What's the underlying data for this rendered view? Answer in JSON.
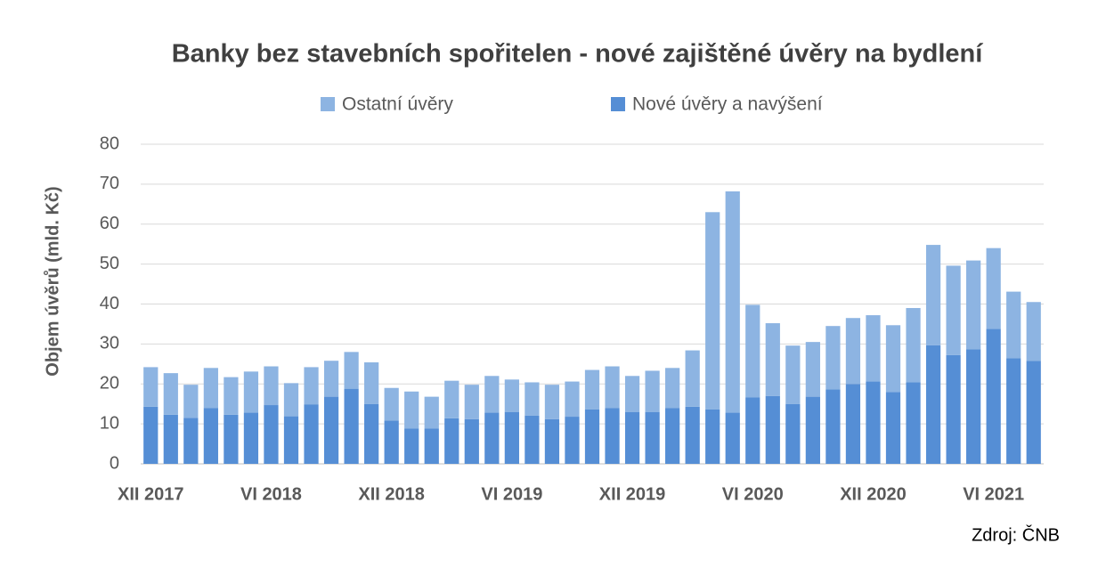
{
  "chart_data": {
    "type": "stacked_bar",
    "title": "Banky bez stavebních spořitelen - nové zajištěné úvěry na bydlení",
    "y_label": "Objem úvěrů (mld. Kč)",
    "source": "Zdroj: ČNB",
    "categories": [
      "XII 2017",
      null,
      null,
      null,
      null,
      null,
      "VI 2018",
      null,
      null,
      null,
      null,
      null,
      "XII 2018",
      null,
      null,
      null,
      null,
      null,
      "VI 2019",
      null,
      null,
      null,
      null,
      null,
      "XII 2019",
      null,
      null,
      null,
      null,
      null,
      "VI 2020",
      null,
      null,
      null,
      null,
      null,
      "XII 2020",
      null,
      null,
      null,
      null,
      null,
      "VI 2021",
      null,
      null
    ],
    "series": [
      {
        "name": "Nové úvěry a navýšení",
        "color": "#558ed5",
        "values": [
          14.3,
          12.3,
          11.5,
          14.0,
          12.3,
          12.8,
          14.7,
          11.9,
          14.9,
          16.8,
          18.8,
          15.0,
          10.8,
          8.8,
          8.8,
          11.4,
          11.2,
          12.8,
          13.0,
          12.1,
          11.2,
          11.8,
          13.6,
          14.0,
          13.0,
          13.0,
          14.0,
          14.3,
          13.6,
          12.8,
          16.6,
          17.0,
          15.0,
          16.8,
          18.6,
          20.0,
          20.6,
          18.0,
          20.4,
          29.7,
          27.2,
          28.7,
          33.8,
          26.4,
          25.8
        ]
      },
      {
        "name": "Ostatní úvěry",
        "color": "#8db4e2",
        "values": [
          9.9,
          10.4,
          8.3,
          10.0,
          9.4,
          10.3,
          9.7,
          8.3,
          9.3,
          9.0,
          9.2,
          10.4,
          8.2,
          9.3,
          8.0,
          9.4,
          8.6,
          9.2,
          8.1,
          8.3,
          8.6,
          8.8,
          9.9,
          10.4,
          9.0,
          10.3,
          10.0,
          14.1,
          49.4,
          55.4,
          23.2,
          18.2,
          14.6,
          13.7,
          15.9,
          16.5,
          16.6,
          16.7,
          18.6,
          25.1,
          22.4,
          22.2,
          20.2,
          16.7,
          14.7
        ]
      }
    ],
    "ylim": [
      0,
      80
    ],
    "yticks": [
      0,
      10,
      20,
      30,
      40,
      50,
      60,
      70,
      80
    ],
    "grid": true
  }
}
